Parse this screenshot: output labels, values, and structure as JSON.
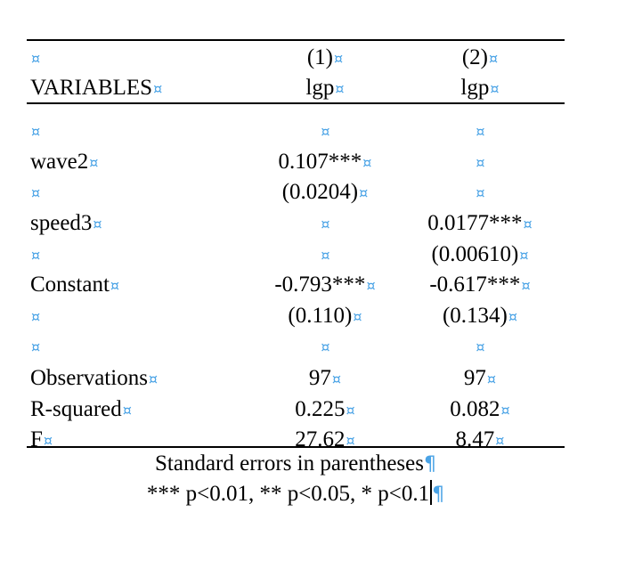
{
  "cell_marker": "¤",
  "paragraph_mark": "¶",
  "table": {
    "rows": [
      {
        "var": "",
        "c1": "(1)",
        "c2": "(2)"
      },
      {
        "var": "VARIABLES",
        "c1": "lgp",
        "c2": "lgp"
      },
      {
        "var": "",
        "c1": "",
        "c2": ""
      },
      {
        "var": "wave2",
        "c1": "0.107***",
        "c2": ""
      },
      {
        "var": "",
        "c1": "(0.0204)",
        "c2": ""
      },
      {
        "var": "speed3",
        "c1": "",
        "c2": "0.0177***"
      },
      {
        "var": "",
        "c1": "",
        "c2": "(0.00610)"
      },
      {
        "var": "Constant",
        "c1": "-0.793***",
        "c2": "-0.617***"
      },
      {
        "var": "",
        "c1": "(0.110)",
        "c2": "(0.134)"
      },
      {
        "var": "",
        "c1": "",
        "c2": ""
      },
      {
        "var": "Observations",
        "c1": "97",
        "c2": "97"
      },
      {
        "var": "R-squared",
        "c1": "0.225",
        "c2": "0.082"
      },
      {
        "var": "F",
        "c1": "27.62",
        "c2": "8.47"
      }
    ]
  },
  "notes": {
    "line1": "Standard errors in parentheses",
    "line2": "*** p<0.01, ** p<0.05, * p<0.1"
  }
}
